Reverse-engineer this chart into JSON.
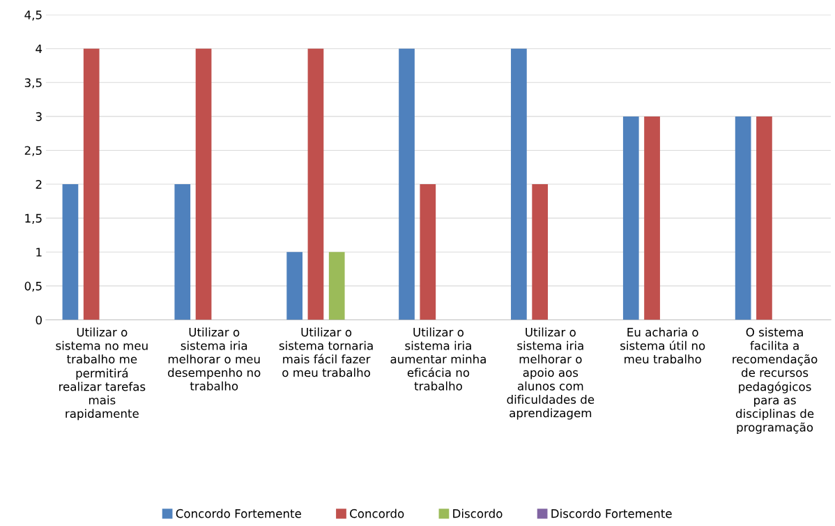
{
  "chart_data": {
    "type": "bar",
    "categories": [
      "Utilizar o\nsistema no meu\ntrabalho me\npermitirá\nrealizar tarefas\nmais\nrapidamente",
      "Utilizar o\nsistema iria\nmelhorar o meu\ndesempenho no\ntrabalho",
      "Utilizar o\nsistema tornaria\nmais fácil fazer\no meu trabalho",
      "Utilizar o\nsistema iria\naumentar minha\neficácia no\ntrabalho",
      "Utilizar o\nsistema iria\nmelhorar o\napoio aos\nalunos com\ndificuldades de\naprendizagem",
      "Eu acharia o\nsistema útil no\nmeu trabalho",
      "O sistema\nfacilita a\nrecomendação\nde recursos\npedagógicos\npara as\ndisciplinas de\nprogramação"
    ],
    "series": [
      {
        "name": "Concordo Fortemente",
        "color": "#4f81bd",
        "values": [
          2,
          2,
          1,
          4,
          4,
          3,
          3
        ]
      },
      {
        "name": "Concordo",
        "color": "#c0504d",
        "values": [
          4,
          4,
          4,
          2,
          2,
          3,
          3
        ]
      },
      {
        "name": "Discordo",
        "color": "#9bbb59",
        "values": [
          0,
          0,
          1,
          0,
          0,
          0,
          0
        ]
      },
      {
        "name": "Discordo Fortemente",
        "color": "#8064a2",
        "values": [
          0,
          0,
          0,
          0,
          0,
          0,
          0
        ]
      }
    ],
    "ylim": [
      0,
      4.5
    ],
    "yticks": [
      0,
      {
        "value": 0.5,
        "label": "0,5"
      },
      1,
      {
        "value": 1.5,
        "label": "1,5"
      },
      2,
      {
        "value": 2.5,
        "label": "2,5"
      },
      3,
      {
        "value": 3.5,
        "label": "3,5"
      },
      4,
      {
        "value": 4.5,
        "label": "4,5"
      }
    ],
    "grid": "y",
    "legend": "bottom"
  }
}
